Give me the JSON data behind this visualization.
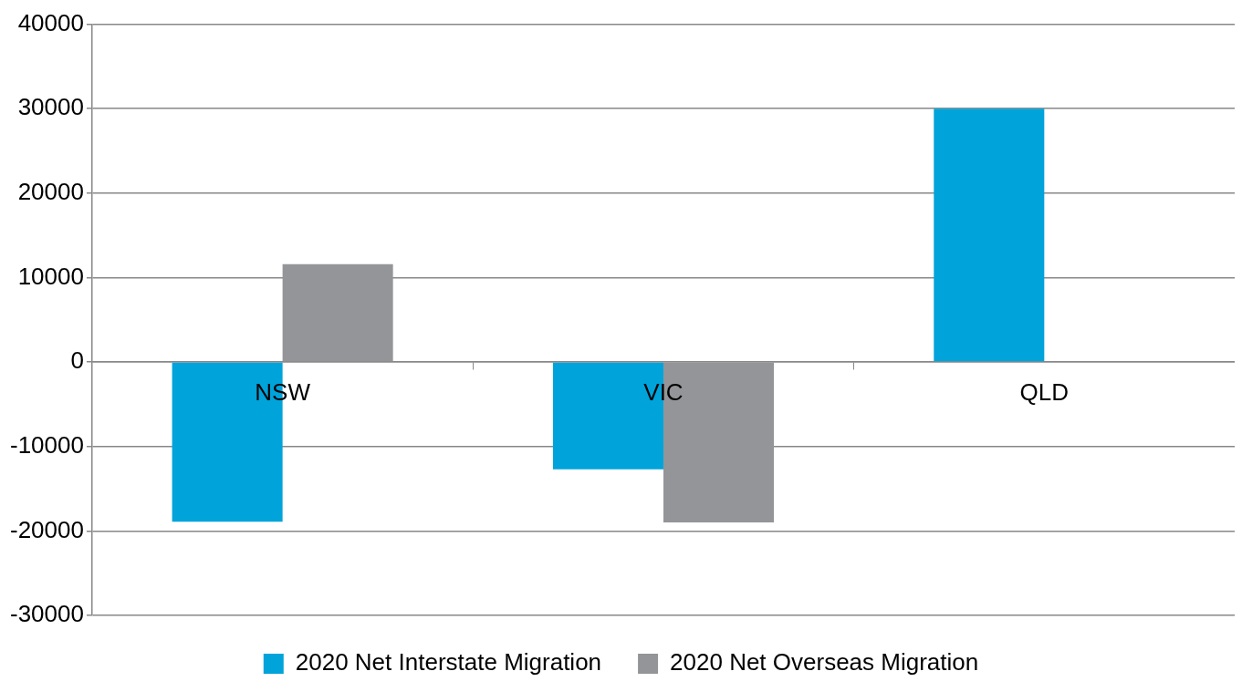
{
  "chart_data": {
    "type": "bar",
    "categories": [
      "NSW",
      "VIC",
      "QLD"
    ],
    "series": [
      {
        "name": "2020 Net Interstate Migration",
        "color": "#00a3da",
        "values": [
          -18900,
          -12700,
          30000
        ]
      },
      {
        "name": "2020 Net Overseas Migration",
        "color": "#939598",
        "values": [
          11600,
          -19000,
          null
        ]
      }
    ],
    "ylim": [
      -30000,
      40000
    ],
    "yticks": [
      -30000,
      -20000,
      -10000,
      0,
      10000,
      20000,
      30000,
      40000
    ],
    "grid": "y",
    "legend": "bottom"
  }
}
